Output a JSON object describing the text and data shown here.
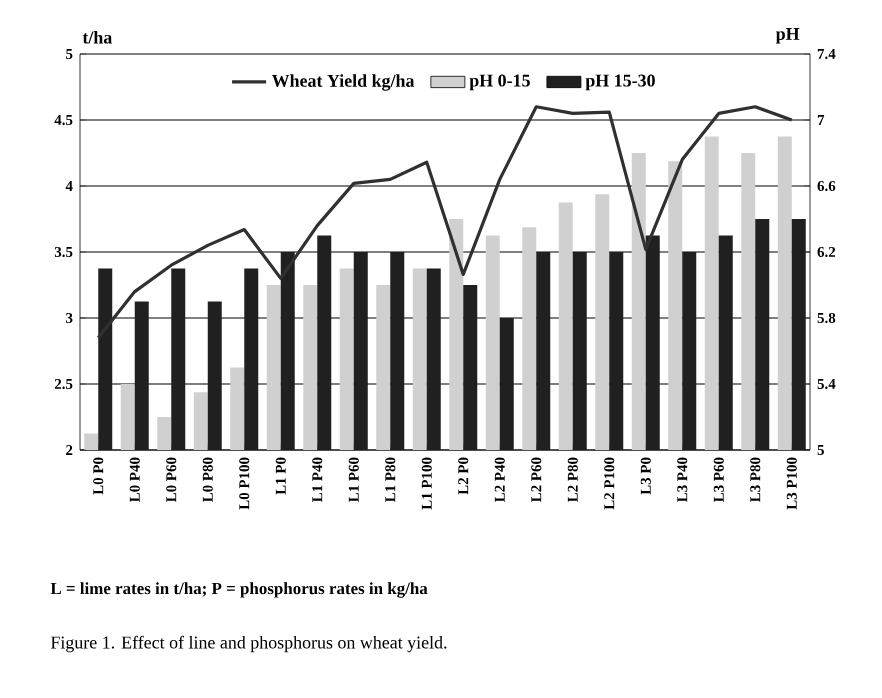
{
  "chart_data": {
    "type": "bar",
    "ylabel": "t/ha",
    "y2label": "pH",
    "categories": [
      "L0 P0",
      "L0 P40",
      "L0 P60",
      "L0 P80",
      "L0 P100",
      "L1 P0",
      "L1 P40",
      "L1 P60",
      "L1 P80",
      "L1 P100",
      "L2 P0",
      "L2 P40",
      "L2 P60",
      "L2 P80",
      "L2 P100",
      "L3 P0",
      "L3 P40",
      "L3 P60",
      "L3 P80",
      "L3 P100"
    ],
    "series": [
      {
        "name": "Wheat Yield kg/ha",
        "type": "line",
        "color": "#303030",
        "values": [
          2.85,
          3.2,
          3.4,
          3.55,
          3.67,
          3.3,
          3.7,
          4.02,
          4.05,
          4.18,
          3.33,
          4.05,
          4.6,
          4.55,
          4.56,
          3.52,
          4.2,
          4.55,
          4.6,
          4.5
        ]
      },
      {
        "name": "pH 0-15",
        "axis": "y2",
        "color": "#d0d0d0",
        "values": [
          5.1,
          5.4,
          5.2,
          5.35,
          5.5,
          6.0,
          6.0,
          6.1,
          6.0,
          6.1,
          6.4,
          6.3,
          6.35,
          6.5,
          6.55,
          6.8,
          6.75,
          6.9,
          6.8,
          6.9
        ]
      },
      {
        "name": "pH 15-30",
        "axis": "y2",
        "color": "#202020",
        "values": [
          6.1,
          5.9,
          6.1,
          5.9,
          6.1,
          6.2,
          6.3,
          6.2,
          6.2,
          6.1,
          6.0,
          5.8,
          6.2,
          6.2,
          6.2,
          6.3,
          6.2,
          6.3,
          6.4,
          6.4
        ]
      }
    ],
    "ylim": [
      2,
      5
    ],
    "yticks": [
      2,
      2.5,
      3,
      3.5,
      4,
      4.5,
      5
    ],
    "y2lim": [
      5,
      7.4
    ],
    "y2ticks": [
      5,
      5.4,
      5.8,
      6.2,
      6.6,
      7,
      7.4
    ],
    "grid": "y",
    "legend": "top",
    "marker": "none",
    "line_style": "solid",
    "annotations": [
      "**L = lime rates in t/ha;  P = phosphorus rates in kg/ha**",
      "Figure 1.  Effect of line and phosphorus on wheat yield."
    ]
  }
}
